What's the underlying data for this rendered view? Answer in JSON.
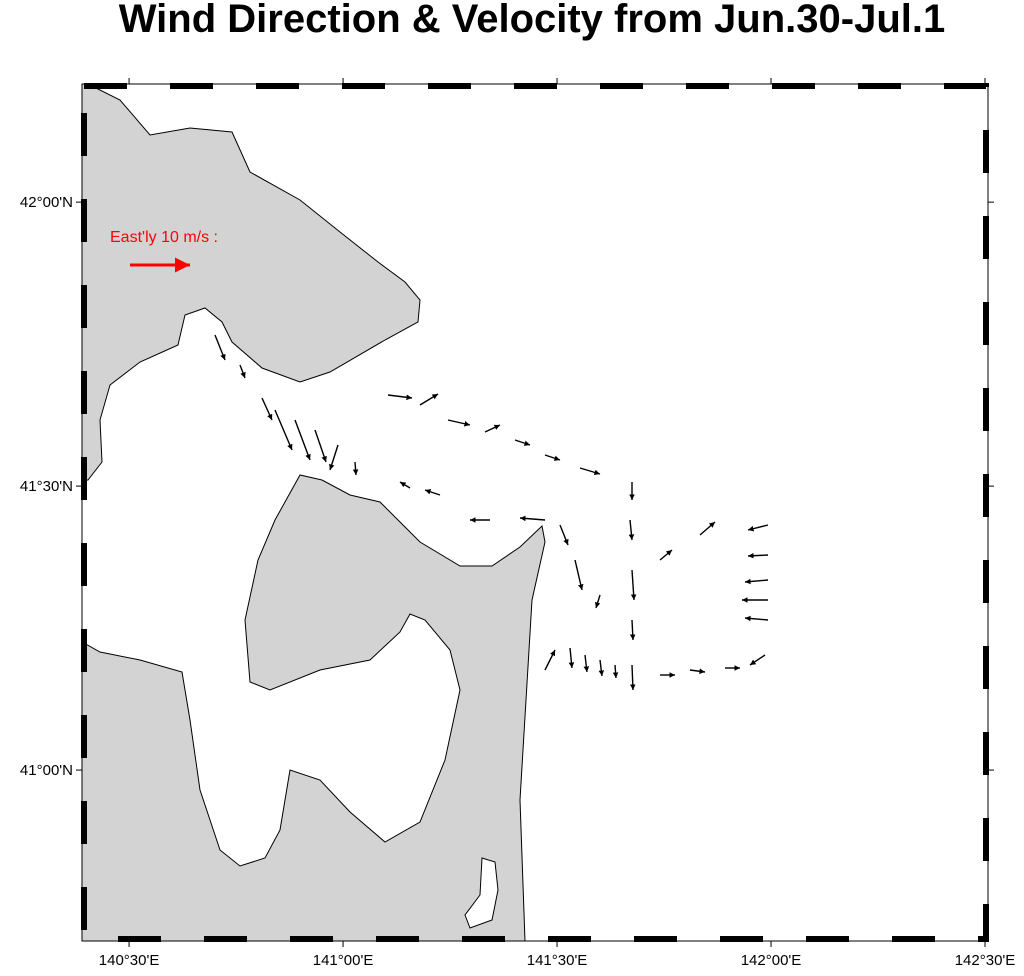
{
  "chart_data": {
    "type": "map",
    "title": "Wind Direction & Velocity from Jun.30-Jul.1",
    "legend_label": "East'ly 10 m/s :",
    "xlim": [
      140.39,
      142.507
    ],
    "ylim": [
      40.699,
      42.208
    ],
    "xticks": [
      {
        "value": 140.5,
        "label": "140°30'E"
      },
      {
        "value": 141,
        "label": "141°00'E"
      },
      {
        "value": 141.5,
        "label": "141°30'E"
      },
      {
        "value": 142,
        "label": "142°00'E"
      },
      {
        "value": 142.5,
        "label": "142°30'E"
      }
    ],
    "yticks": [
      {
        "value": 41,
        "label": "41°00'N"
      },
      {
        "value": 41.5,
        "label": "41°30'N"
      },
      {
        "value": 42,
        "label": "42°00'N"
      }
    ]
  }
}
